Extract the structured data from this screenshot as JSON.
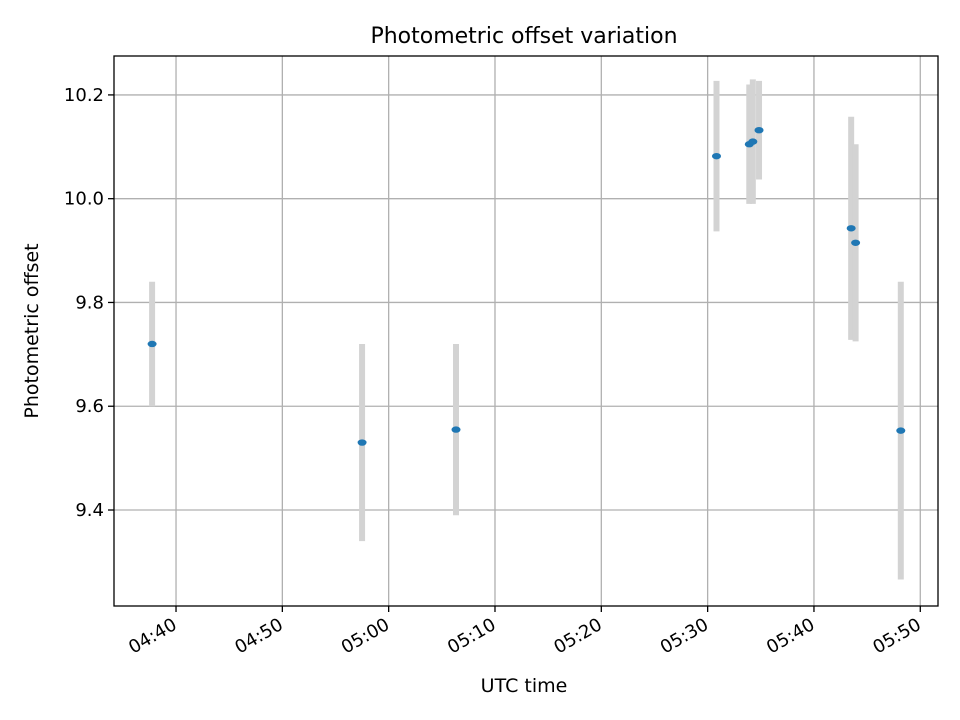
{
  "chart_data": {
    "type": "scatter",
    "title": "Photometric offset variation",
    "xlabel": "UTC time",
    "ylabel": "Photometric offset",
    "xlim": [
      "04:34:10",
      "05:51:40"
    ],
    "ylim": [
      9.215,
      10.275
    ],
    "grid": true,
    "x_ticks": [
      "04:40",
      "04:50",
      "05:00",
      "05:10",
      "05:20",
      "05:30",
      "05:40",
      "05:50"
    ],
    "y_ticks": [
      9.4,
      9.6,
      9.8,
      10.0,
      10.2
    ],
    "y_tick_labels": [
      "9.4",
      "9.6",
      "9.8",
      "10.0",
      "10.2"
    ],
    "colors": {
      "marker": "#1f77b4",
      "errorbar": "#d3d3d3"
    },
    "points": [
      {
        "x": "04:37:45",
        "y": 9.72,
        "err": 0.12
      },
      {
        "x": "04:57:30",
        "y": 9.53,
        "err": 0.19
      },
      {
        "x": "05:06:20",
        "y": 9.555,
        "err": 0.165
      },
      {
        "x": "05:30:50",
        "y": 10.082,
        "err": 0.145
      },
      {
        "x": "05:33:55",
        "y": 10.105,
        "err": 0.115
      },
      {
        "x": "05:34:15",
        "y": 10.11,
        "err": 0.12
      },
      {
        "x": "05:34:50",
        "y": 10.132,
        "err": 0.095
      },
      {
        "x": "05:43:30",
        "y": 9.943,
        "err": 0.215
      },
      {
        "x": "05:43:55",
        "y": 9.915,
        "err": 0.19
      },
      {
        "x": "05:48:10",
        "y": 9.553,
        "err": 0.287
      }
    ]
  }
}
